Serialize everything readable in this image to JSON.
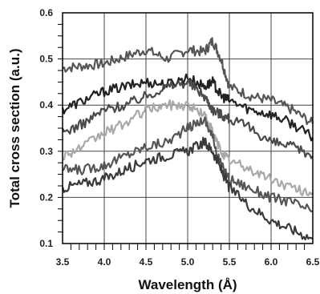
{
  "chart_data": {
    "type": "line",
    "xlabel": "Wavelength (Å)",
    "ylabel": "Total cross section (a.u.)",
    "xlim": [
      3.5,
      6.5
    ],
    "ylim": [
      0.1,
      0.6
    ],
    "x_ticks": [
      "3.5",
      "4.0",
      "4.5",
      "5.0",
      "5.5",
      "6.0",
      "6.5"
    ],
    "y_ticks": [
      "0.1",
      "0.2",
      "0.3",
      "0.4",
      "0.5",
      "0.6"
    ],
    "grid": true,
    "series": [
      {
        "color": "#555555",
        "x": [
          3.5,
          3.75,
          4.0,
          4.25,
          4.5,
          4.75,
          5.0,
          5.2,
          5.3,
          5.4,
          5.5,
          5.75,
          6.0,
          6.25,
          6.5
        ],
        "y": [
          0.48,
          0.485,
          0.49,
          0.505,
          0.52,
          0.5,
          0.52,
          0.515,
          0.54,
          0.5,
          0.44,
          0.42,
          0.41,
          0.39,
          0.36
        ]
      },
      {
        "color": "#222222",
        "x": [
          3.5,
          3.75,
          4.0,
          4.25,
          4.5,
          4.75,
          5.0,
          5.2,
          5.3,
          5.4,
          5.5,
          5.75,
          6.0,
          6.25,
          6.5
        ],
        "y": [
          0.39,
          0.41,
          0.43,
          0.44,
          0.45,
          0.445,
          0.46,
          0.44,
          0.45,
          0.42,
          0.41,
          0.39,
          0.38,
          0.36,
          0.33
        ]
      },
      {
        "color": "#4a4a4a",
        "x": [
          3.5,
          3.75,
          4.0,
          4.25,
          4.5,
          4.75,
          5.0,
          5.2,
          5.3,
          5.4,
          5.5,
          5.75,
          6.0,
          6.25,
          6.5
        ],
        "y": [
          0.34,
          0.36,
          0.39,
          0.4,
          0.42,
          0.44,
          0.45,
          0.42,
          0.39,
          0.38,
          0.37,
          0.35,
          0.32,
          0.31,
          0.29
        ]
      },
      {
        "color": "#a8a8a8",
        "x": [
          3.5,
          3.75,
          4.0,
          4.25,
          4.5,
          4.75,
          5.0,
          5.2,
          5.3,
          5.4,
          5.5,
          5.75,
          6.0,
          6.25,
          6.5
        ],
        "y": [
          0.29,
          0.31,
          0.34,
          0.36,
          0.39,
          0.4,
          0.4,
          0.38,
          0.34,
          0.3,
          0.28,
          0.26,
          0.24,
          0.22,
          0.21
        ]
      },
      {
        "color": "#555555",
        "x": [
          3.5,
          3.75,
          4.0,
          4.25,
          4.5,
          4.75,
          5.0,
          5.2,
          5.3,
          5.4,
          5.5,
          5.75,
          6.0,
          6.25,
          6.5
        ],
        "y": [
          0.26,
          0.26,
          0.27,
          0.29,
          0.31,
          0.32,
          0.35,
          0.37,
          0.33,
          0.27,
          0.24,
          0.22,
          0.2,
          0.19,
          0.17
        ]
      },
      {
        "color": "#3a3a3a",
        "x": [
          3.5,
          3.75,
          4.0,
          4.25,
          4.5,
          4.75,
          5.0,
          5.2,
          5.3,
          5.4,
          5.5,
          5.75,
          6.0,
          6.25,
          6.5
        ],
        "y": [
          0.22,
          0.23,
          0.24,
          0.26,
          0.28,
          0.29,
          0.3,
          0.32,
          0.3,
          0.26,
          0.22,
          0.18,
          0.15,
          0.13,
          0.11
        ]
      }
    ]
  }
}
